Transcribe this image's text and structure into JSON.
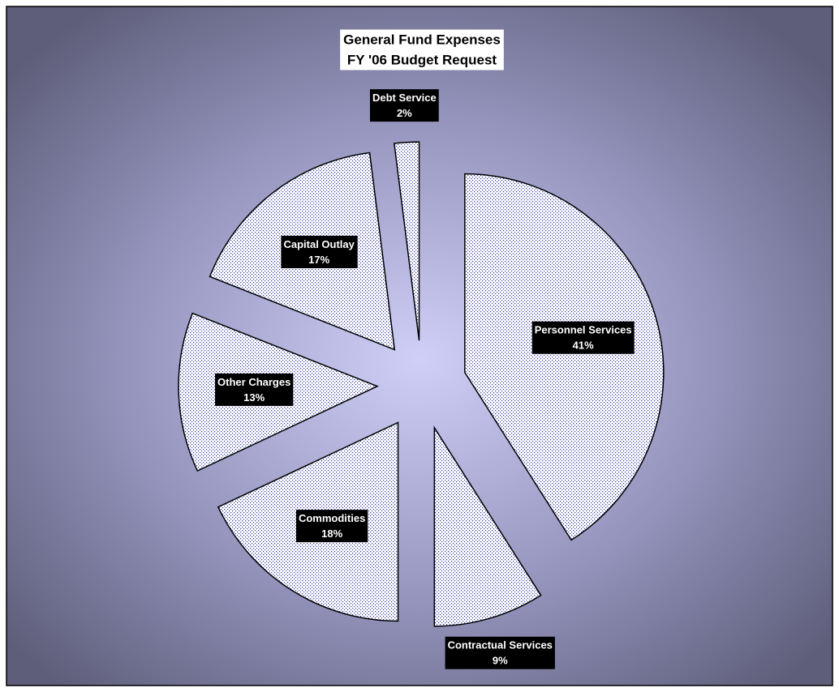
{
  "chart_data": {
    "type": "pie",
    "title_lines": [
      "General Fund Expenses",
      "FY '06 Budget Request"
    ],
    "categories": [
      "Personnel Services",
      "Contractual Services",
      "Commodities",
      "Other Charges",
      "Capital Outlay",
      "Debt Service"
    ],
    "values": [
      41,
      9,
      18,
      13,
      17,
      2
    ],
    "value_labels": [
      "41%",
      "9%",
      "18%",
      "13%",
      "17%",
      "2%"
    ],
    "start_angle": 0,
    "direction": "clockwise",
    "exploded": true,
    "color": "#3a3aa0"
  }
}
